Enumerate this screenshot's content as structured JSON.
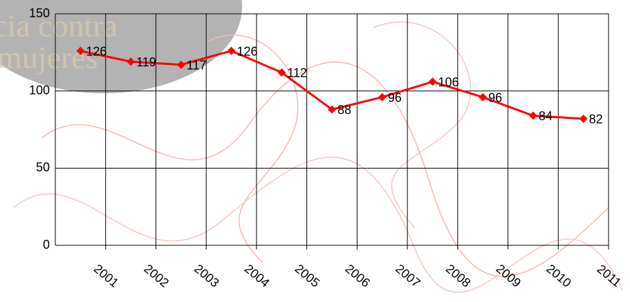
{
  "chart_data": {
    "type": "line",
    "background_text": [
      "cia contra",
      "mujeres"
    ],
    "categories": [
      "2001",
      "2002",
      "2003",
      "2004",
      "2005",
      "2006",
      "2007",
      "2008",
      "2009",
      "2010",
      "2011"
    ],
    "series": [
      {
        "color": "#ff0000",
        "values": [
          126,
          119,
          117,
          126,
          112,
          88,
          96,
          106,
          96,
          84,
          82
        ]
      }
    ],
    "ylim": [
      0,
      150
    ],
    "yticks": [
      0,
      50,
      100,
      150
    ],
    "grid": true
  }
}
